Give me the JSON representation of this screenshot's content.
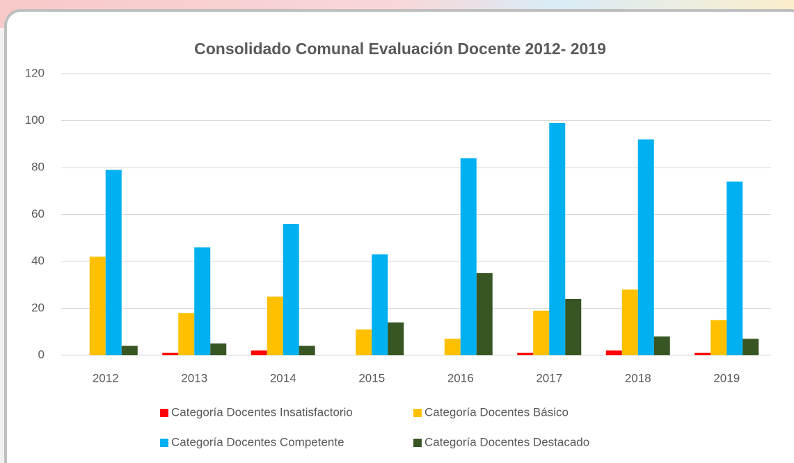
{
  "chart_data": {
    "type": "bar",
    "title": "Consolidado Comunal Evaluación Docente 2012- 2019",
    "categories": [
      "2012",
      "2013",
      "2014",
      "2015",
      "2016",
      "2017",
      "2018",
      "2019"
    ],
    "series": [
      {
        "name": "Categoría Docentes Insatisfactorio",
        "color": "#ff0000",
        "values": [
          0,
          1,
          2,
          0,
          0,
          1,
          2,
          1
        ]
      },
      {
        "name": "Categoría Docentes Básico",
        "color": "#ffc000",
        "values": [
          42,
          18,
          25,
          11,
          7,
          19,
          28,
          15
        ]
      },
      {
        "name": "Categoría Docentes Competente",
        "color": "#00b0f0",
        "values": [
          79,
          46,
          56,
          43,
          84,
          99,
          92,
          74
        ]
      },
      {
        "name": "Categoría Docentes Destacado",
        "color": "#375623",
        "values": [
          4,
          5,
          4,
          14,
          35,
          24,
          8,
          7
        ]
      }
    ],
    "ylim": [
      0,
      120
    ],
    "yticks": [
      0,
      20,
      40,
      60,
      80,
      100,
      120
    ],
    "grid": true,
    "legend": "bottom"
  }
}
